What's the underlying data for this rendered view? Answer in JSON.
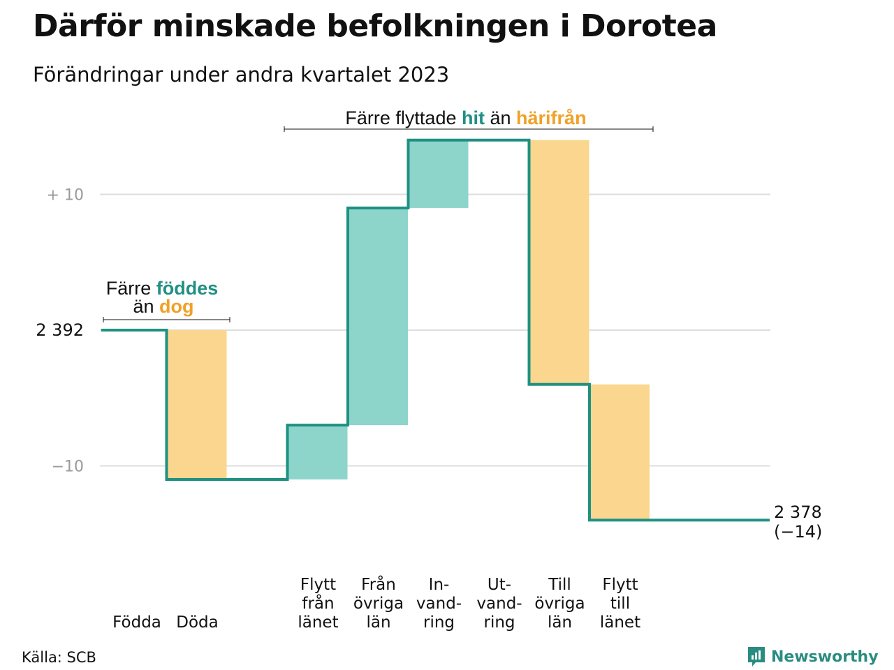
{
  "title": "Därför minskade befolkningen i Dorotea",
  "subtitle": "Förändringar under andra kvartalet 2023",
  "source": "Källa: SCB",
  "brand": "Newsworthy",
  "colors": {
    "teal": "#1f9082",
    "teal_fill": "#8dd4cb",
    "orange_fill": "#fad68e",
    "orange_text": "#f0a127",
    "grid": "#dedede",
    "axis_text": "#9a9a9a"
  },
  "annotations": {
    "births": {
      "line1_a": "Färre ",
      "line1_b": "föddes",
      "line2_a": "än ",
      "line2_b": "dog"
    },
    "migration": {
      "a": "Färre flyttade ",
      "b": "hit",
      "c": " än ",
      "d": "härifrån"
    }
  },
  "chart_data": {
    "type": "waterfall",
    "start_value": 2392,
    "start_label": "2 392",
    "end_label_1": "2 378",
    "end_label_2": "(−14)",
    "y_ticks": [
      {
        "value": 10,
        "label": "+  10"
      },
      {
        "value": 0,
        "label": ""
      },
      {
        "value": -10,
        "label": "−10"
      }
    ],
    "ylim": [
      -14,
      14
    ],
    "steps": [
      {
        "category": [
          "Födda"
        ],
        "change": 0,
        "kind": "in"
      },
      {
        "category": [
          "Döda"
        ],
        "change": -11,
        "kind": "out"
      },
      {
        "category": [
          ""
        ],
        "change": 0,
        "kind": "none"
      },
      {
        "category": [
          "Flytt",
          "från",
          "länet"
        ],
        "change": 4,
        "kind": "in"
      },
      {
        "category": [
          "Från",
          "övriga",
          "län"
        ],
        "change": 16,
        "kind": "in"
      },
      {
        "category": [
          "In-",
          "vand-",
          "ring"
        ],
        "change": 5,
        "kind": "in"
      },
      {
        "category": [
          "Ut-",
          "vand-",
          "ring"
        ],
        "change": 0,
        "kind": "out"
      },
      {
        "category": [
          "Till",
          "övriga",
          "län"
        ],
        "change": -18,
        "kind": "out"
      },
      {
        "category": [
          "Flytt",
          "till",
          "länet"
        ],
        "change": -10,
        "kind": "out"
      }
    ]
  }
}
